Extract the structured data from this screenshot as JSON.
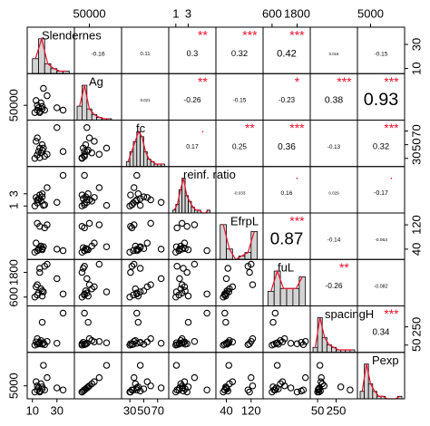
{
  "chart_data": {
    "type": "pairs",
    "variables": [
      {
        "name": "Slendernes",
        "lim": [
          8,
          42
        ],
        "ticks": [
          10,
          30
        ],
        "values": [
          12,
          14,
          15,
          16,
          17,
          18,
          18,
          20,
          22,
          14,
          30,
          35,
          16,
          19,
          13
        ],
        "hist": {
          "bins": [
            10,
            15,
            20,
            25,
            30,
            35,
            40
          ],
          "counts": [
            6,
            14,
            4,
            2,
            1,
            1
          ]
        }
      },
      {
        "name": "Ag",
        "lim": [
          0,
          170000
        ],
        "ticks": [
          50000
        ],
        "values": [
          20000,
          30000,
          40000,
          25000,
          60000,
          45000,
          35000,
          30000,
          90000,
          50000,
          40000,
          30000,
          20000,
          120000,
          70000
        ],
        "hist": {
          "bins": [
            0,
            20000,
            40000,
            60000,
            80000,
            100000,
            120000,
            140000
          ],
          "counts": [
            10,
            25,
            8,
            4,
            2,
            1,
            1
          ]
        }
      },
      {
        "name": "fc",
        "lim": [
          22,
          82
        ],
        "ticks": [
          30,
          50,
          70
        ],
        "values": [
          30,
          35,
          40,
          45,
          38,
          42,
          50,
          33,
          36,
          60,
          75,
          40,
          31,
          45,
          55
        ],
        "hist": {
          "bins": [
            25,
            30,
            35,
            40,
            45,
            50,
            55,
            60,
            65,
            70,
            75,
            80
          ],
          "counts": [
            2,
            6,
            10,
            14,
            12,
            6,
            3,
            2,
            1,
            1,
            1
          ]
        }
      },
      {
        "name": "reinf. ratio",
        "lim": [
          0.3,
          7
        ],
        "ticks": [
          1,
          3
        ],
        "values": [
          1,
          1.5,
          2,
          2.2,
          1.8,
          3,
          2.5,
          1.2,
          4,
          2,
          1.6,
          6,
          2.8,
          1.1,
          2.4
        ],
        "hist": {
          "bins": [
            0.5,
            1,
            1.5,
            2,
            2.5,
            3,
            3.5,
            4,
            4.5,
            5,
            5.5,
            6,
            6.5
          ],
          "counts": [
            1,
            3,
            8,
            12,
            6,
            4,
            2,
            1,
            1,
            0,
            0,
            1
          ]
        }
      },
      {
        "name": "EfrpL",
        "lim": [
          15,
          150
        ],
        "ticks": [
          40,
          120
        ],
        "values": [
          30,
          35,
          40,
          45,
          50,
          38,
          42,
          110,
          120,
          125,
          40,
          35,
          115,
          48,
          60
        ],
        "hist": {
          "bins": [
            20,
            40,
            60,
            80,
            100,
            120,
            140
          ],
          "counts": [
            10,
            3,
            0,
            1,
            2,
            8
          ]
        }
      },
      {
        "name": "fuL",
        "lim": [
          300,
          2300
        ],
        "ticks": [
          600,
          1800
        ],
        "values": [
          600,
          700,
          800,
          2000,
          1000,
          650,
          900,
          2100,
          2200,
          1200,
          1500,
          750,
          1800,
          850,
          1100
        ],
        "hist": {
          "bins": [
            400,
            700,
            1000,
            1300,
            1600,
            1900,
            2200
          ],
          "counts": [
            5,
            12,
            6,
            6,
            6,
            10
          ]
        }
      },
      {
        "name": "spacingH",
        "lim": [
          0,
          450
        ],
        "ticks": [
          50,
          250
        ],
        "values": [
          50,
          60,
          70,
          80,
          100,
          300,
          60,
          55,
          90,
          120,
          70,
          400,
          65,
          75,
          85
        ],
        "hist": {
          "bins": [
            0,
            50,
            100,
            150,
            200,
            250,
            300,
            350,
            400,
            450
          ],
          "counts": [
            2,
            14,
            6,
            3,
            2,
            1,
            1,
            1,
            1
          ]
        }
      },
      {
        "name": "Pexp",
        "lim": [
          0,
          20000
        ],
        "ticks": [
          5000
        ],
        "values": [
          2000,
          3000,
          4000,
          2500,
          6000,
          4500,
          3500,
          3000,
          9000,
          5000,
          4000,
          3000,
          2000,
          15000,
          7000
        ],
        "hist": {
          "bins": [
            0,
            2000,
            4000,
            6000,
            8000,
            10000,
            12000,
            14000,
            16000,
            18000,
            20000
          ],
          "counts": [
            3,
            14,
            6,
            3,
            1,
            1,
            0,
            0,
            0,
            1
          ]
        }
      }
    ],
    "correlations": [
      [
        -0.16,
        0.11,
        0.3,
        0.32,
        0.42,
        0.016,
        -0.15
      ],
      [
        0.021,
        -0.26,
        -0.15,
        -0.23,
        0.38,
        0.93
      ],
      [
        0.17,
        0.25,
        0.36,
        -0.13,
        0.32
      ],
      [
        -0.033,
        0.16,
        0.029,
        -0.17
      ],
      [
        0.87,
        -0.14,
        -0.053
      ],
      [
        -0.26,
        -0.082
      ],
      [
        0.34
      ]
    ],
    "stars": [
      [
        null,
        null,
        "**",
        "***",
        "***",
        null,
        null
      ],
      [
        null,
        "**",
        null,
        "*",
        "***",
        "***"
      ],
      [
        ".",
        "**",
        "***",
        null,
        "***"
      ],
      [
        null,
        ".",
        null,
        "."
      ],
      [
        "***",
        null,
        null
      ],
      [
        "**",
        null
      ],
      [
        "***"
      ]
    ]
  }
}
